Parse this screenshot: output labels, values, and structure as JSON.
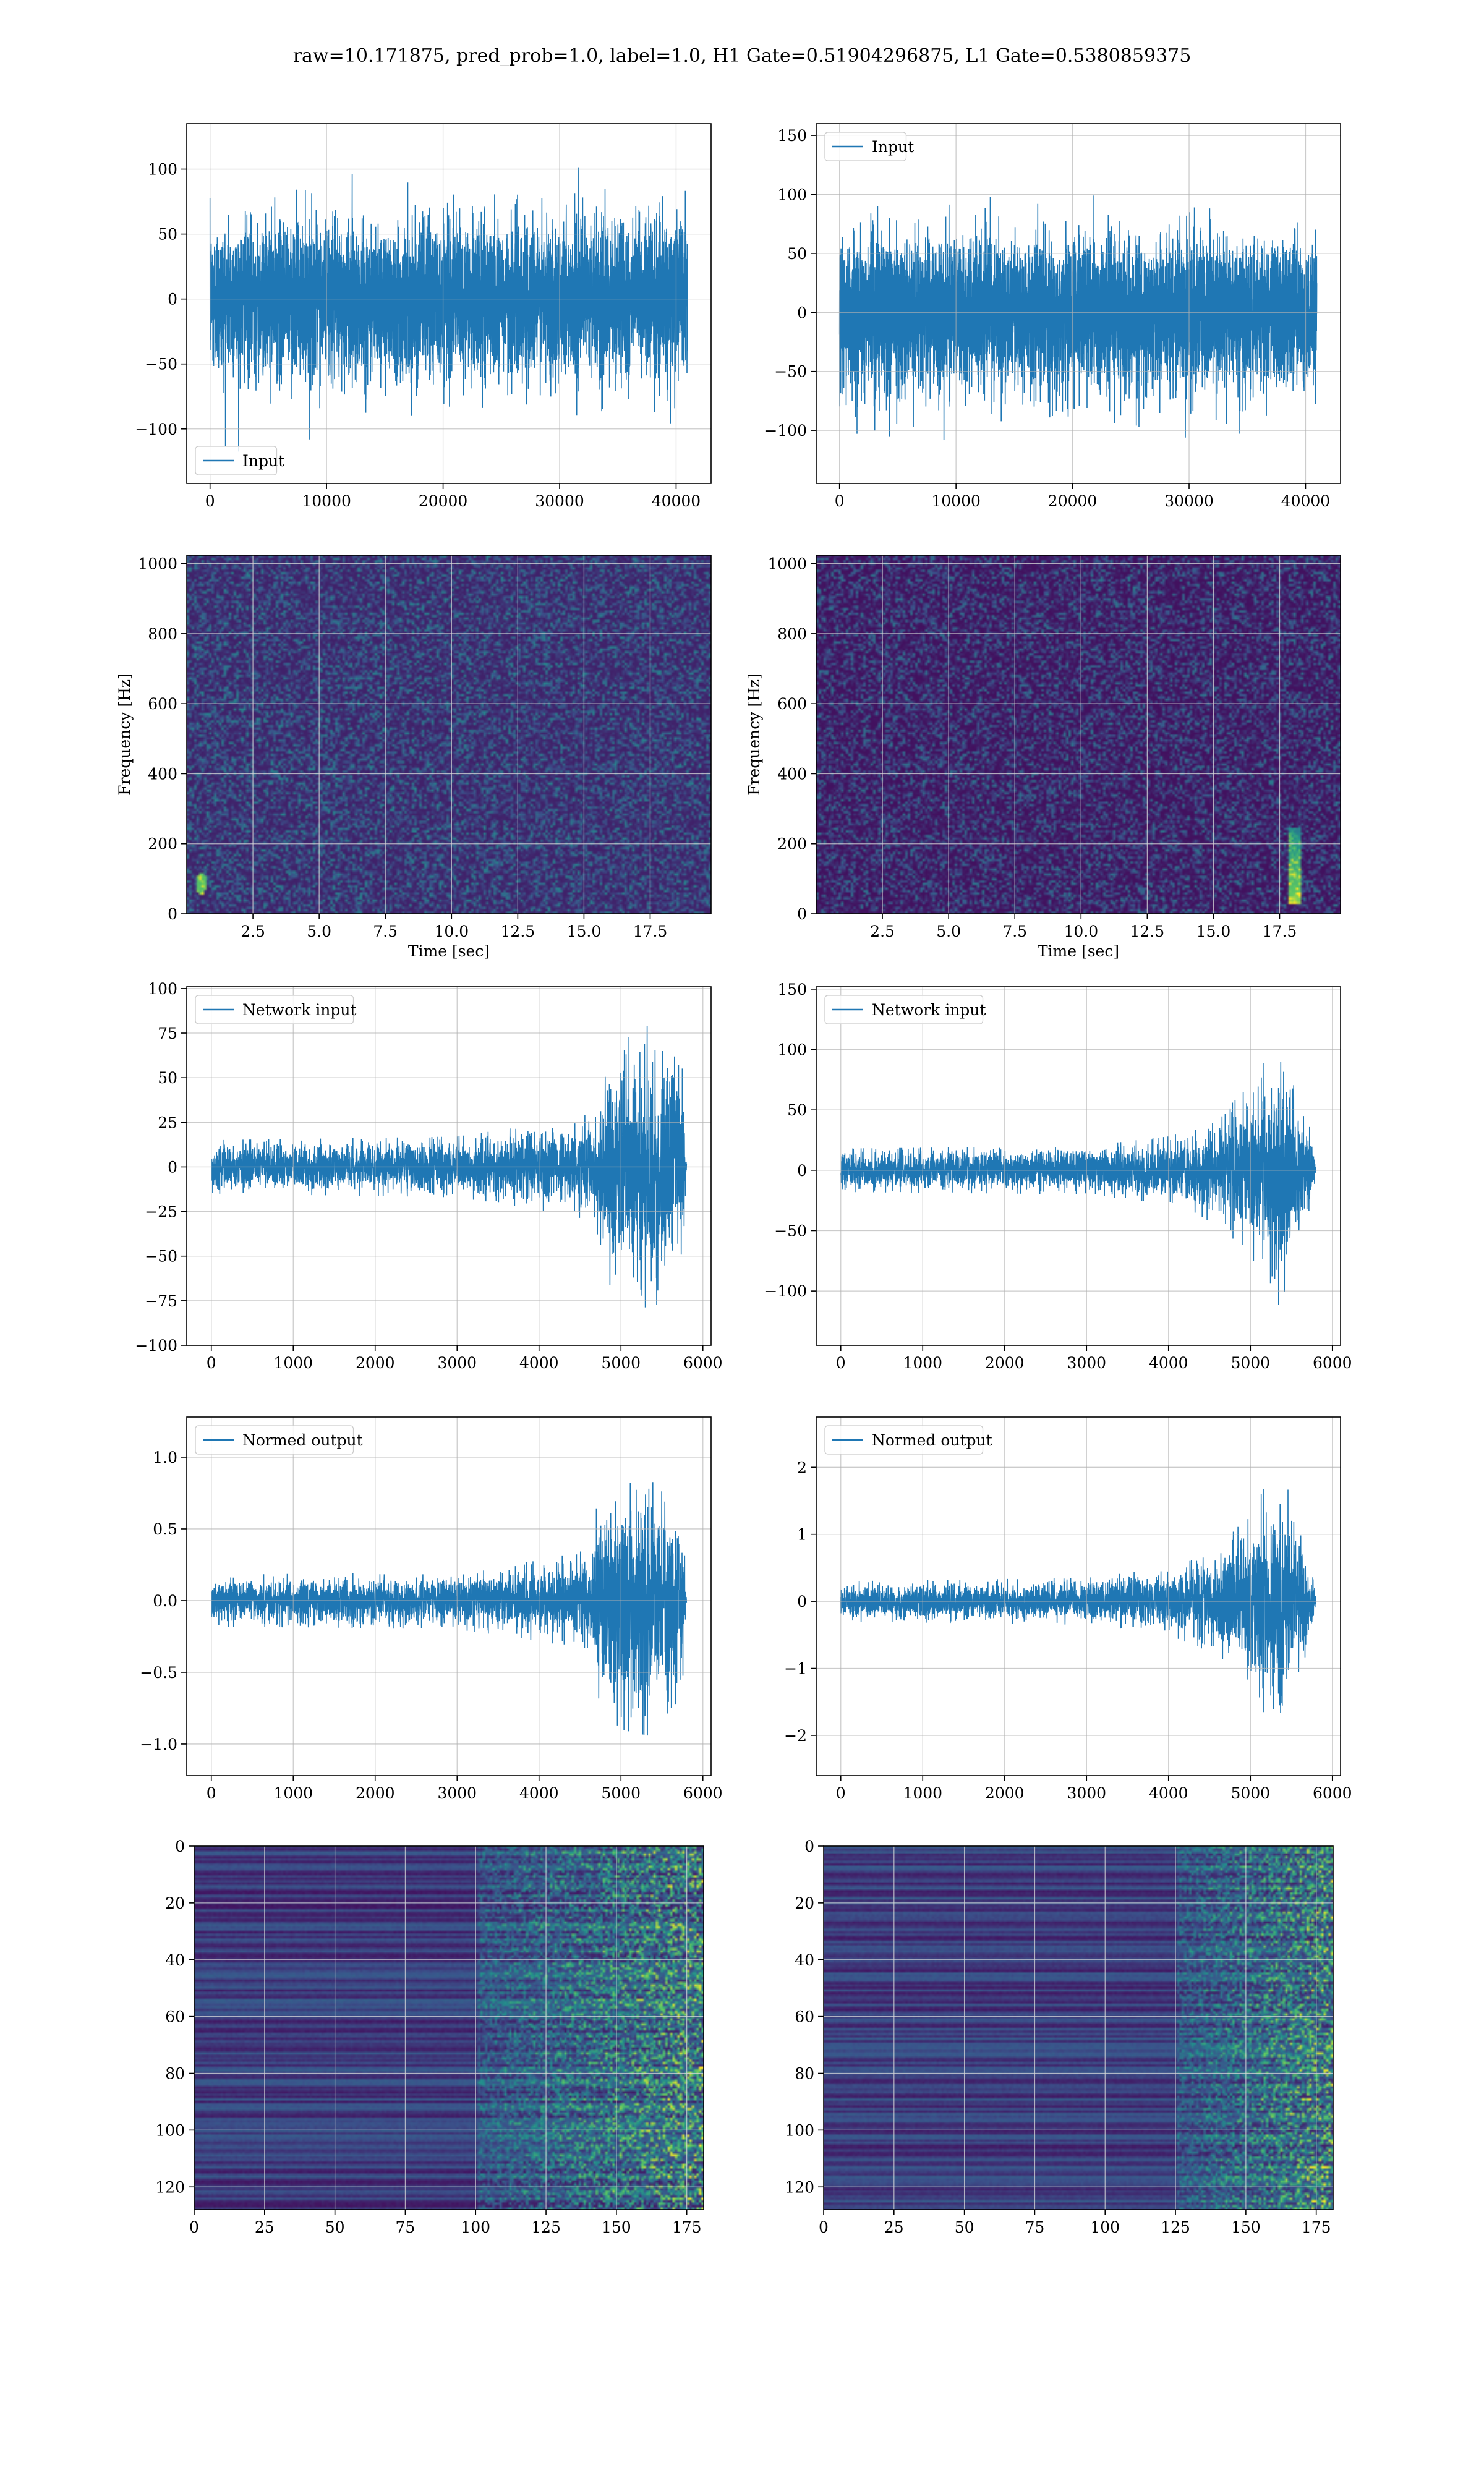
{
  "suptitle": "raw=10.171875, pred_prob=1.0, label=1.0, H1 Gate=0.51904296875, L1 Gate=0.5380859375",
  "colors": {
    "line": "#1f77b4",
    "grid": "#b0b0b0",
    "cmap": [
      "#440154",
      "#3b528b",
      "#21918c",
      "#5ec962",
      "#fde725"
    ]
  },
  "chart_data": [
    {
      "id": "h1-input",
      "type": "line",
      "title": "",
      "xlabel": "",
      "ylabel": "",
      "xlim": [
        -2000,
        43000
      ],
      "ylim": [
        -142,
        135
      ],
      "xticks": [
        0,
        10000,
        20000,
        30000,
        40000
      ],
      "yticks": [
        -100,
        -50,
        0,
        50,
        100
      ],
      "legend": "lower-left",
      "series": [
        {
          "name": "Input",
          "n_points": 40960,
          "x_range": [
            0,
            40960
          ],
          "approx_std": 28,
          "approx_peak": 128
        }
      ]
    },
    {
      "id": "l1-input",
      "type": "line",
      "title": "",
      "xlabel": "",
      "ylabel": "",
      "xlim": [
        -2000,
        43000
      ],
      "ylim": [
        -145,
        160
      ],
      "xticks": [
        0,
        10000,
        20000,
        30000,
        40000
      ],
      "yticks": [
        -100,
        -50,
        0,
        50,
        100,
        150
      ],
      "legend": "upper-left",
      "series": [
        {
          "name": "Input",
          "n_points": 40960,
          "x_range": [
            0,
            40960
          ],
          "approx_std": 30,
          "approx_peak": 150
        }
      ]
    },
    {
      "id": "h1-spectrogram",
      "type": "heatmap",
      "title": "",
      "xlabel": "Time [sec]",
      "ylabel": "Frequency [Hz]",
      "xlim": [
        0,
        19.8
      ],
      "ylim": [
        0,
        1024
      ],
      "xticks": [
        2.5,
        5.0,
        7.5,
        10.0,
        12.5,
        15.0,
        17.5
      ],
      "yticks": [
        0,
        200,
        400,
        600,
        800,
        1000
      ],
      "colormap": "viridis",
      "features": [
        {
          "time": 0.5,
          "freq": 90,
          "note": "bright spot"
        }
      ]
    },
    {
      "id": "l1-spectrogram",
      "type": "heatmap",
      "title": "",
      "xlabel": "Time [sec]",
      "ylabel": "Frequency [Hz]",
      "xlim": [
        0,
        19.8
      ],
      "ylim": [
        0,
        1024
      ],
      "xticks": [
        2.5,
        5.0,
        7.5,
        10.0,
        12.5,
        15.0,
        17.5
      ],
      "yticks": [
        0,
        200,
        400,
        600,
        800,
        1000
      ],
      "colormap": "viridis",
      "features": [
        {
          "time": 18.0,
          "freq_from": 30,
          "freq_to": 250,
          "note": "chirp track"
        }
      ]
    },
    {
      "id": "h1-network-input",
      "type": "line",
      "title": "",
      "xlabel": "",
      "ylabel": "",
      "xlim": [
        -300,
        6100
      ],
      "ylim": [
        -100,
        101
      ],
      "xticks": [
        0,
        1000,
        2000,
        3000,
        4000,
        5000,
        6000
      ],
      "yticks": [
        -100,
        -75,
        -50,
        -25,
        0,
        25,
        50,
        75,
        100
      ],
      "legend": "upper-left",
      "series": [
        {
          "name": "Network input",
          "n_points": 5800,
          "envelope": [
            [
              0,
              15
            ],
            [
              3000,
              17
            ],
            [
              4000,
              24
            ],
            [
              4650,
              30
            ],
            [
              4700,
              55
            ],
            [
              5000,
              75
            ],
            [
              5400,
              80
            ],
            [
              5750,
              55
            ],
            [
              5800,
              3
            ]
          ]
        }
      ]
    },
    {
      "id": "l1-network-input",
      "type": "line",
      "title": "",
      "xlabel": "",
      "ylabel": "",
      "xlim": [
        -300,
        6100
      ],
      "ylim": [
        -145,
        152
      ],
      "xticks": [
        0,
        1000,
        2000,
        3000,
        4000,
        5000,
        6000
      ],
      "yticks": [
        -100,
        -50,
        0,
        50,
        100,
        150
      ],
      "legend": "upper-left",
      "series": [
        {
          "name": "Network input",
          "n_points": 5800,
          "envelope": [
            [
              0,
              18
            ],
            [
              3000,
              20
            ],
            [
              4000,
              28
            ],
            [
              4600,
              45
            ],
            [
              5000,
              70
            ],
            [
              5350,
              115
            ],
            [
              5600,
              60
            ],
            [
              5750,
              30
            ],
            [
              5800,
              4
            ]
          ]
        }
      ]
    },
    {
      "id": "h1-normed-output",
      "type": "line",
      "title": "",
      "xlabel": "",
      "ylabel": "",
      "xlim": [
        -300,
        6100
      ],
      "ylim": [
        -1.22,
        1.28
      ],
      "xticks": [
        0,
        1000,
        2000,
        3000,
        4000,
        5000,
        6000
      ],
      "yticks": [
        -1.0,
        -0.5,
        0.0,
        0.5,
        1.0
      ],
      "legend": "upper-left",
      "series": [
        {
          "name": "Normed output",
          "n_points": 5800,
          "envelope": [
            [
              0,
              0.18
            ],
            [
              3000,
              0.2
            ],
            [
              4000,
              0.28
            ],
            [
              4650,
              0.36
            ],
            [
              4700,
              0.7
            ],
            [
              5000,
              0.9
            ],
            [
              5400,
              0.95
            ],
            [
              5750,
              0.65
            ],
            [
              5800,
              0.04
            ]
          ]
        }
      ]
    },
    {
      "id": "l1-normed-output",
      "type": "line",
      "title": "",
      "xlabel": "",
      "ylabel": "",
      "xlim": [
        -300,
        6100
      ],
      "ylim": [
        -2.6,
        2.75
      ],
      "xticks": [
        0,
        1000,
        2000,
        3000,
        4000,
        5000,
        6000
      ],
      "yticks": [
        -2,
        -1,
        0,
        1,
        2
      ],
      "legend": "upper-left",
      "series": [
        {
          "name": "Normed output",
          "n_points": 5800,
          "envelope": [
            [
              0,
              0.3
            ],
            [
              3000,
              0.35
            ],
            [
              4000,
              0.5
            ],
            [
              4600,
              0.8
            ],
            [
              5000,
              1.3
            ],
            [
              5350,
              2.1
            ],
            [
              5600,
              1.1
            ],
            [
              5750,
              0.5
            ],
            [
              5800,
              0.07
            ]
          ]
        }
      ]
    },
    {
      "id": "h1-feature-map",
      "type": "heatmap",
      "title": "",
      "xlabel": "",
      "ylabel": "",
      "xlim": [
        0,
        181
      ],
      "ylim": [
        128,
        0
      ],
      "xticks": [
        0,
        25,
        50,
        75,
        100,
        125,
        150,
        175
      ],
      "yticks": [
        0,
        20,
        40,
        60,
        80,
        100,
        120
      ],
      "colormap": "viridis",
      "features": [
        {
          "col_from": 100,
          "col_to": 181,
          "note": "activation onset"
        }
      ]
    },
    {
      "id": "l1-feature-map",
      "type": "heatmap",
      "title": "",
      "xlabel": "",
      "ylabel": "",
      "xlim": [
        0,
        181
      ],
      "ylim": [
        128,
        0
      ],
      "xticks": [
        0,
        25,
        50,
        75,
        100,
        125,
        150,
        175
      ],
      "yticks": [
        0,
        20,
        40,
        60,
        80,
        100,
        120
      ],
      "colormap": "viridis",
      "features": [
        {
          "col_from": 125,
          "col_to": 181,
          "note": "activation onset"
        }
      ]
    }
  ]
}
